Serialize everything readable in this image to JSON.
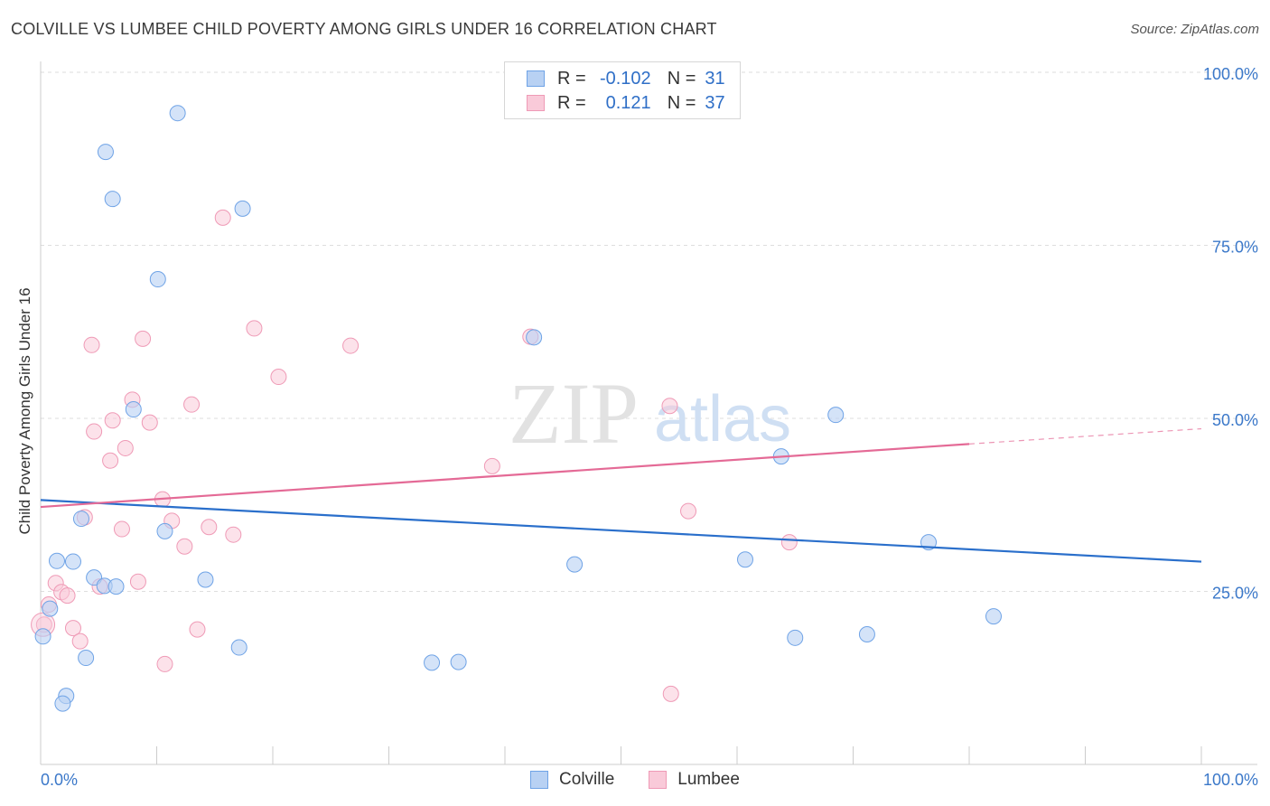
{
  "header": {
    "title": "COLVILLE VS LUMBEE CHILD POVERTY AMONG GIRLS UNDER 16 CORRELATION CHART",
    "source": "Source: ZipAtlas.com"
  },
  "watermark": {
    "zip": "ZIP",
    "atlas": "atlas"
  },
  "legend": {
    "rows": [
      {
        "r_label": "R =",
        "r_value": "-0.102",
        "n_label": "N =",
        "n_value": "31"
      },
      {
        "r_label": "R =",
        "r_value": "0.121",
        "n_label": "N =",
        "n_value": "37"
      }
    ]
  },
  "chart_data": {
    "type": "scatter",
    "xlabel": "",
    "ylabel": "Child Poverty Among Girls Under 16",
    "xlim": [
      0,
      100
    ],
    "ylim": [
      0,
      100
    ],
    "x_tick_labels": [
      "0.0%",
      "100.0%"
    ],
    "y_tick_labels": [
      "25.0%",
      "50.0%",
      "75.0%",
      "100.0%"
    ],
    "y_ticks": [
      25,
      50,
      75,
      100
    ],
    "grid": true,
    "legend_position": "top-center",
    "series": [
      {
        "name": "Colville",
        "color": "#6fa3e6",
        "fill": "#b8d1f3",
        "line_color": "#2a6fcb",
        "trend": {
          "x": [
            0,
            100
          ],
          "y": [
            38.2,
            29.3
          ]
        },
        "points": [
          [
            11.8,
            94.1
          ],
          [
            5.6,
            88.5
          ],
          [
            6.2,
            81.7
          ],
          [
            17.4,
            80.3
          ],
          [
            10.1,
            70.1
          ],
          [
            42.5,
            61.7
          ],
          [
            8.0,
            51.3
          ],
          [
            68.5,
            50.5
          ],
          [
            63.8,
            44.5
          ],
          [
            3.5,
            35.5
          ],
          [
            10.7,
            33.7
          ],
          [
            76.5,
            32.1
          ],
          [
            1.4,
            29.4
          ],
          [
            2.8,
            29.3
          ],
          [
            60.7,
            29.6
          ],
          [
            46.0,
            28.9
          ],
          [
            4.6,
            27.0
          ],
          [
            14.2,
            26.7
          ],
          [
            5.5,
            25.8
          ],
          [
            6.5,
            25.7
          ],
          [
            0.8,
            22.5
          ],
          [
            65.0,
            18.3
          ],
          [
            71.2,
            18.8
          ],
          [
            82.1,
            21.4
          ],
          [
            0.2,
            18.5
          ],
          [
            17.1,
            16.9
          ],
          [
            3.9,
            15.4
          ],
          [
            33.7,
            14.7
          ],
          [
            36.0,
            14.8
          ],
          [
            2.2,
            9.9
          ],
          [
            1.9,
            8.8
          ]
        ]
      },
      {
        "name": "Lumbee",
        "color": "#ef9ab6",
        "fill": "#f9cad9",
        "line_color": "#e46a96",
        "trend_solid": {
          "x": [
            0,
            80
          ],
          "y": [
            37.2,
            46.3
          ]
        },
        "trend_dashed": {
          "x": [
            80,
            100
          ],
          "y": [
            46.3,
            48.5
          ]
        },
        "points": [
          [
            15.7,
            79.0
          ],
          [
            18.4,
            63.0
          ],
          [
            8.8,
            61.5
          ],
          [
            4.4,
            60.6
          ],
          [
            26.7,
            60.5
          ],
          [
            42.2,
            61.8
          ],
          [
            20.5,
            56.0
          ],
          [
            7.9,
            52.7
          ],
          [
            13.0,
            52.0
          ],
          [
            54.2,
            51.8
          ],
          [
            6.2,
            49.7
          ],
          [
            9.4,
            49.4
          ],
          [
            4.6,
            48.1
          ],
          [
            7.3,
            45.7
          ],
          [
            6.0,
            43.9
          ],
          [
            38.9,
            43.1
          ],
          [
            10.5,
            38.3
          ],
          [
            55.8,
            36.6
          ],
          [
            3.8,
            35.7
          ],
          [
            11.3,
            35.2
          ],
          [
            7.0,
            34.0
          ],
          [
            14.5,
            34.3
          ],
          [
            16.6,
            33.2
          ],
          [
            64.5,
            32.1
          ],
          [
            12.4,
            31.5
          ],
          [
            8.4,
            26.4
          ],
          [
            1.3,
            26.2
          ],
          [
            5.1,
            25.7
          ],
          [
            1.8,
            24.9
          ],
          [
            2.3,
            24.4
          ],
          [
            0.7,
            23.1
          ],
          [
            0.3,
            20.2
          ],
          [
            2.8,
            19.7
          ],
          [
            13.5,
            19.5
          ],
          [
            3.4,
            17.8
          ],
          [
            10.7,
            14.5
          ],
          [
            54.3,
            10.2
          ]
        ]
      }
    ]
  }
}
